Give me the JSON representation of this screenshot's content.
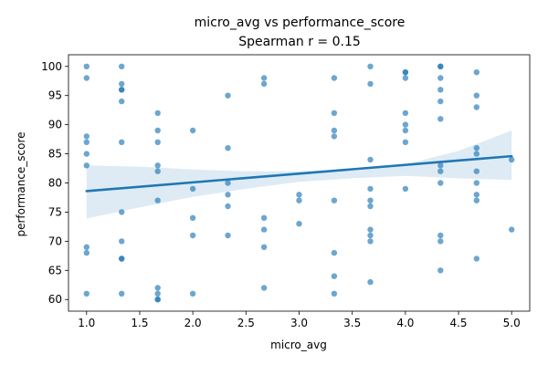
{
  "chart_data": {
    "type": "scatter",
    "title": "micro_avg vs performance_score",
    "subtitle": "Spearman r = 0.15",
    "xlabel": "micro_avg",
    "ylabel": "performance_score",
    "xlim": [
      0.83,
      5.17
    ],
    "ylim": [
      58,
      102
    ],
    "xticks": [
      1.0,
      1.5,
      2.0,
      2.5,
      3.0,
      3.5,
      4.0,
      4.5,
      5.0
    ],
    "xtick_labels": [
      "1.0",
      "1.5",
      "2.0",
      "2.5",
      "3.0",
      "3.5",
      "4.0",
      "4.5",
      "5.0"
    ],
    "yticks": [
      60,
      65,
      70,
      75,
      80,
      85,
      90,
      95,
      100
    ],
    "ytick_labels": [
      "60",
      "65",
      "70",
      "75",
      "80",
      "85",
      "90",
      "95",
      "100"
    ],
    "colors": {
      "points": "#1f77b4",
      "line": "#1f77b4",
      "band": "#1f77b4"
    },
    "regression": {
      "x": [
        1.0,
        5.0
      ],
      "y": [
        78.6,
        84.6
      ],
      "ci_upper": [
        [
          1.0,
          83.0
        ],
        [
          1.5,
          82.8
        ],
        [
          2.0,
          82.3
        ],
        [
          2.5,
          82.0
        ],
        [
          3.0,
          82.0
        ],
        [
          3.5,
          82.3
        ],
        [
          4.0,
          83.2
        ],
        [
          4.5,
          85.5
        ],
        [
          5.0,
          89.0
        ]
      ],
      "ci_lower": [
        [
          1.0,
          73.9
        ],
        [
          1.5,
          75.8
        ],
        [
          2.0,
          77.6
        ],
        [
          2.5,
          79.0
        ],
        [
          3.0,
          80.2
        ],
        [
          3.5,
          80.8
        ],
        [
          4.0,
          81.2
        ],
        [
          4.5,
          80.8
        ],
        [
          5.0,
          80.5
        ]
      ]
    },
    "points": [
      [
        1.0,
        100
      ],
      [
        1.0,
        98
      ],
      [
        1.0,
        88
      ],
      [
        1.0,
        87
      ],
      [
        1.0,
        85
      ],
      [
        1.0,
        83
      ],
      [
        1.0,
        69
      ],
      [
        1.0,
        68
      ],
      [
        1.0,
        61
      ],
      [
        1.33,
        100
      ],
      [
        1.33,
        97
      ],
      [
        1.33,
        96
      ],
      [
        1.33,
        96
      ],
      [
        1.33,
        94
      ],
      [
        1.33,
        87
      ],
      [
        1.33,
        75
      ],
      [
        1.33,
        70
      ],
      [
        1.33,
        67
      ],
      [
        1.33,
        67
      ],
      [
        1.33,
        61
      ],
      [
        1.67,
        92
      ],
      [
        1.67,
        89
      ],
      [
        1.67,
        87
      ],
      [
        1.67,
        83
      ],
      [
        1.67,
        82
      ],
      [
        1.67,
        77
      ],
      [
        1.67,
        62
      ],
      [
        1.67,
        61
      ],
      [
        1.67,
        60
      ],
      [
        1.67,
        60
      ],
      [
        2.0,
        89
      ],
      [
        2.0,
        79
      ],
      [
        2.0,
        74
      ],
      [
        2.0,
        71
      ],
      [
        2.0,
        61
      ],
      [
        2.33,
        95
      ],
      [
        2.33,
        86
      ],
      [
        2.33,
        80
      ],
      [
        2.33,
        78
      ],
      [
        2.33,
        76
      ],
      [
        2.33,
        71
      ],
      [
        2.67,
        98
      ],
      [
        2.67,
        97
      ],
      [
        2.67,
        74
      ],
      [
        2.67,
        72
      ],
      [
        2.67,
        69
      ],
      [
        2.67,
        62
      ],
      [
        3.0,
        78
      ],
      [
        3.0,
        77
      ],
      [
        3.0,
        73
      ],
      [
        3.33,
        98
      ],
      [
        3.33,
        92
      ],
      [
        3.33,
        89
      ],
      [
        3.33,
        88
      ],
      [
        3.33,
        77
      ],
      [
        3.33,
        68
      ],
      [
        3.33,
        64
      ],
      [
        3.33,
        61
      ],
      [
        3.67,
        100
      ],
      [
        3.67,
        97
      ],
      [
        3.67,
        84
      ],
      [
        3.67,
        79
      ],
      [
        3.67,
        77
      ],
      [
        3.67,
        76
      ],
      [
        3.67,
        72
      ],
      [
        3.67,
        71
      ],
      [
        3.67,
        70
      ],
      [
        3.67,
        63
      ],
      [
        4.0,
        99
      ],
      [
        4.0,
        99
      ],
      [
        4.0,
        98
      ],
      [
        4.0,
        92
      ],
      [
        4.0,
        90
      ],
      [
        4.0,
        89
      ],
      [
        4.0,
        87
      ],
      [
        4.0,
        79
      ],
      [
        4.33,
        100
      ],
      [
        4.33,
        100
      ],
      [
        4.33,
        98
      ],
      [
        4.33,
        96
      ],
      [
        4.33,
        94
      ],
      [
        4.33,
        91
      ],
      [
        4.33,
        83
      ],
      [
        4.33,
        82
      ],
      [
        4.33,
        80
      ],
      [
        4.33,
        71
      ],
      [
        4.33,
        70
      ],
      [
        4.33,
        65
      ],
      [
        4.67,
        99
      ],
      [
        4.67,
        95
      ],
      [
        4.67,
        93
      ],
      [
        4.67,
        86
      ],
      [
        4.67,
        85
      ],
      [
        4.67,
        82
      ],
      [
        4.67,
        80
      ],
      [
        4.67,
        78
      ],
      [
        4.67,
        77
      ],
      [
        4.67,
        67
      ],
      [
        5.0,
        84
      ],
      [
        5.0,
        72
      ]
    ]
  }
}
